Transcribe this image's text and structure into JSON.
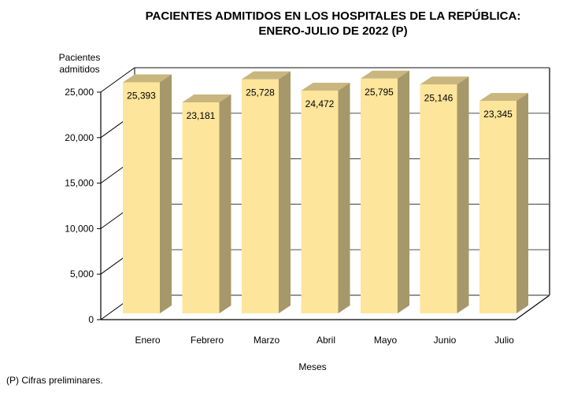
{
  "chart_data": {
    "type": "bar",
    "title_lines": [
      "PACIENTES ADMITIDOS EN LOS HOSPITALES DE LA REPÚBLICA:",
      "ENERO-JULIO DE 2022 (P)"
    ],
    "ylabel_lines": [
      "Pacientes",
      "admitidos"
    ],
    "xlabel": "Meses",
    "categories": [
      "Enero",
      "Febrero",
      "Marzo",
      "Abril",
      "Mayo",
      "Junio",
      "Julio"
    ],
    "values": [
      25393,
      23181,
      25728,
      24472,
      25795,
      25146,
      23345
    ],
    "data_labels": [
      "25,393",
      "23,181",
      "25,728",
      "24,472",
      "25,795",
      "25,146",
      "23,345"
    ],
    "ylim": [
      0,
      25000
    ],
    "yticks": [
      0,
      5000,
      10000,
      15000,
      20000,
      25000
    ],
    "ytick_labels": [
      "0",
      "5,000",
      "10,000",
      "15,000",
      "20,000",
      "25,000"
    ],
    "grid": true,
    "style": "3d-column",
    "colors": {
      "bar_front": "#FDE59B",
      "bar_top": "#C8B67E",
      "bar_side": "#A6986A",
      "gridline": "#606060",
      "frame": "#000000"
    }
  },
  "footnote": "(P) Cifras  preliminares."
}
